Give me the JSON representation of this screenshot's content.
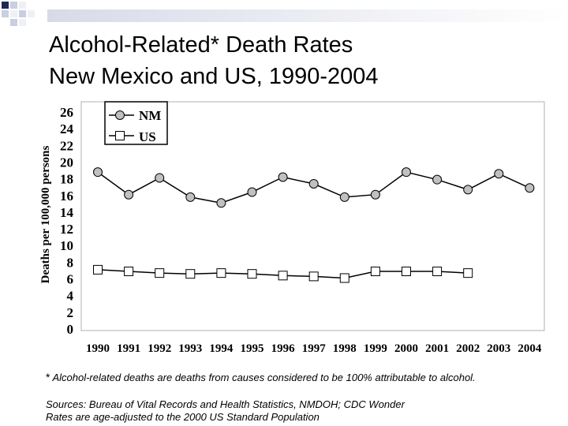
{
  "slide": {
    "title_line1": "Alcohol-Related* Death Rates",
    "title_line2": "New Mexico and US, 1990-2004",
    "footnote_star": "*",
    "footnote": "Alcohol-related deaths are deaths from causes considered to be 100% attributable to alcohol.",
    "sources_line1": "Sources: Bureau of Vital Records and Health Statistics, NMDOH; CDC Wonder",
    "sources_line2": "Rates are age-adjusted to the 2000 US Standard Population"
  },
  "chart_data": {
    "type": "line",
    "title": "",
    "xlabel": "",
    "ylabel": "Deaths per 100,000 persons",
    "categories": [
      "1990",
      "1991",
      "1992",
      "1993",
      "1994",
      "1995",
      "1996",
      "1997",
      "1998",
      "1999",
      "2000",
      "2001",
      "2002",
      "2003",
      "2004"
    ],
    "ylim": [
      0,
      26
    ],
    "yticks": [
      "0",
      "2",
      "4",
      "6",
      "8",
      "10",
      "12",
      "14",
      "16",
      "18",
      "20",
      "22",
      "24",
      "26"
    ],
    "grid": false,
    "legend": "top-left",
    "series": [
      {
        "name": "NM",
        "marker": "circle",
        "values": [
          18.8,
          16.1,
          18.1,
          15.8,
          15.1,
          16.4,
          18.2,
          17.4,
          15.8,
          16.1,
          18.8,
          17.9,
          16.7,
          18.6,
          16.9
        ]
      },
      {
        "name": "US",
        "marker": "square",
        "values": [
          7.1,
          6.9,
          6.7,
          6.6,
          6.7,
          6.6,
          6.4,
          6.3,
          6.1,
          6.9,
          6.9,
          6.9,
          6.7,
          null,
          null
        ]
      }
    ]
  }
}
